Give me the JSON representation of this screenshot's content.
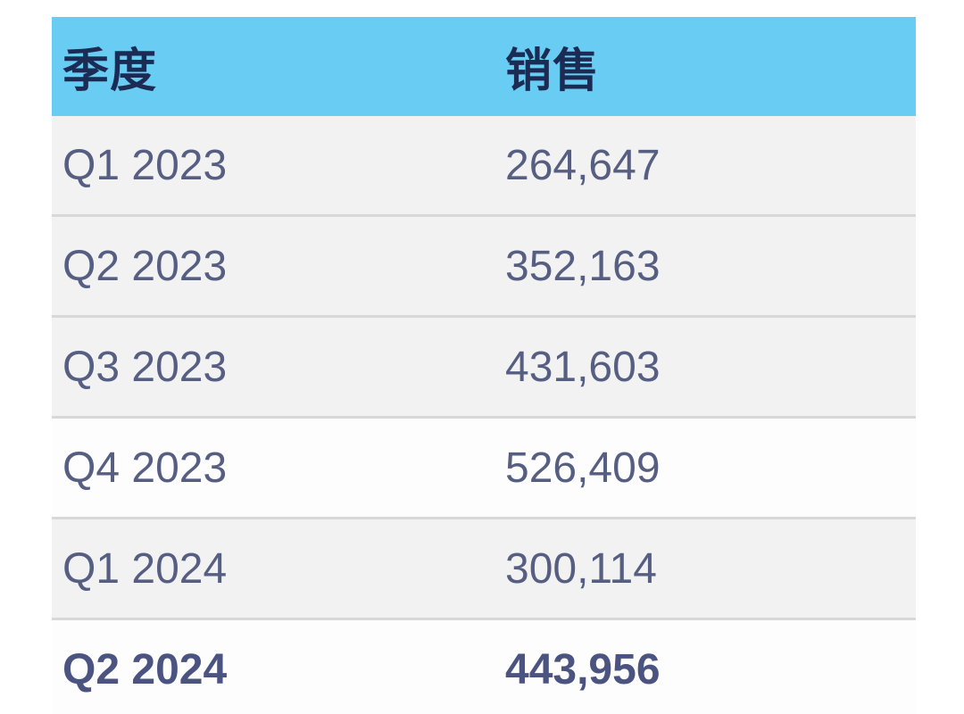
{
  "table": {
    "columns": [
      {
        "key": "quarter",
        "label": "季度"
      },
      {
        "key": "sales",
        "label": "销售"
      }
    ],
    "rows": [
      {
        "quarter": "Q1 2023",
        "sales": "264,647",
        "shaded": true,
        "bold": false
      },
      {
        "quarter": "Q2 2023",
        "sales": "352,163",
        "shaded": true,
        "bold": false
      },
      {
        "quarter": "Q3 2023",
        "sales": "431,603",
        "shaded": true,
        "bold": false
      },
      {
        "quarter": "Q4 2023",
        "sales": "526,409",
        "shaded": false,
        "bold": false
      },
      {
        "quarter": "Q1 2024",
        "sales": "300,114",
        "shaded": true,
        "bold": false
      },
      {
        "quarter": "Q2 2024",
        "sales": "443,956",
        "shaded": false,
        "bold": true
      }
    ]
  },
  "colors": {
    "header_background": "#69cdf3",
    "header_text": "#1b2b53",
    "row_shaded_background": "#f2f2f2",
    "row_plain_background": "#fdfdfd",
    "row_border": "#d8d8d8",
    "cell_text": "#565e82",
    "cell_text_bold": "#4b5480"
  },
  "chart_data": {
    "type": "table",
    "title": "",
    "columns": [
      "季度",
      "销售"
    ],
    "rows": [
      [
        "Q1 2023",
        264647
      ],
      [
        "Q2 2023",
        352163
      ],
      [
        "Q3 2023",
        431603
      ],
      [
        "Q4 2023",
        526409
      ],
      [
        "Q1 2024",
        300114
      ],
      [
        "Q2 2024",
        443956
      ]
    ],
    "emphasized_row": "Q2 2024",
    "layout": {
      "header_fill": "#69cdf3",
      "striped": true
    }
  }
}
